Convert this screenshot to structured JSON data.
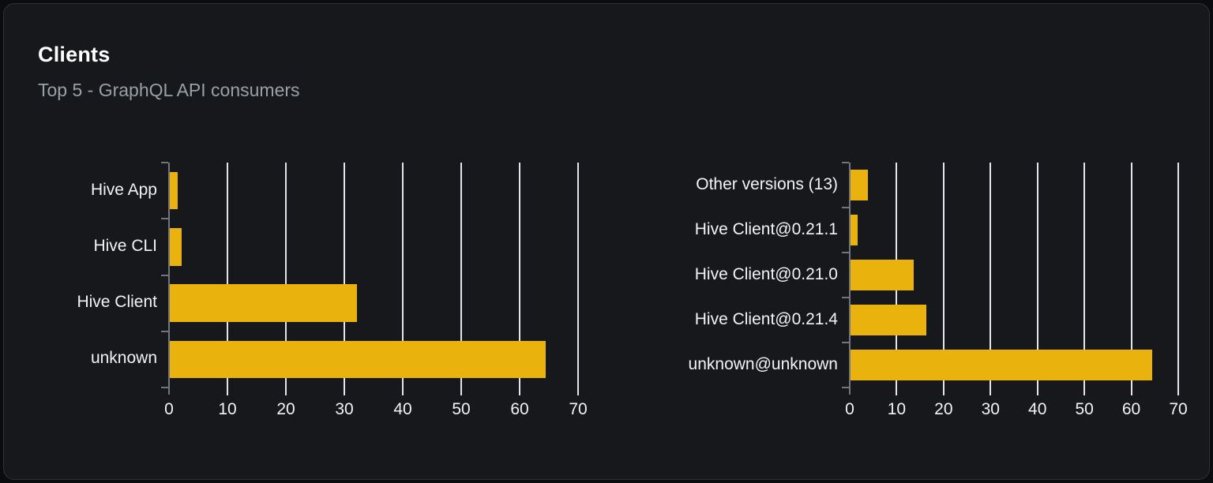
{
  "header": {
    "title": "Clients",
    "subtitle": "Top 5 - GraphQL API consumers"
  },
  "colors": {
    "page_bg": "#0b0c0e",
    "card_bg": "#16181c",
    "card_border": "#2e3136",
    "title": "#ffffff",
    "subtitle": "#9aa0a8",
    "bar": "#e9b20d",
    "gridline": "#e2e6ec",
    "axis": "#71757d",
    "label": "#f2f3f5"
  },
  "chart_data": [
    {
      "type": "bar",
      "orientation": "horizontal",
      "title": "",
      "xlabel": "",
      "ylabel": "",
      "categories": [
        "Hive App",
        "Hive CLI",
        "Hive Client",
        "unknown"
      ],
      "values": [
        1.5,
        2.2,
        32.2,
        64.4
      ],
      "xlim": [
        0,
        70
      ],
      "xticks": [
        0,
        10,
        20,
        30,
        40,
        50,
        60,
        70
      ],
      "grid": true,
      "legend": false
    },
    {
      "type": "bar",
      "orientation": "horizontal",
      "title": "",
      "xlabel": "",
      "ylabel": "",
      "categories": [
        "Other versions (13)",
        "Hive Client@0.21.1",
        "Hive Client@0.21.0",
        "Hive Client@0.21.4",
        "unknown@unknown"
      ],
      "values": [
        3.8,
        1.7,
        13.7,
        16.3,
        64.4
      ],
      "xlim": [
        0,
        70
      ],
      "xticks": [
        0,
        10,
        20,
        30,
        40,
        50,
        60,
        70
      ],
      "grid": true,
      "legend": false
    }
  ]
}
